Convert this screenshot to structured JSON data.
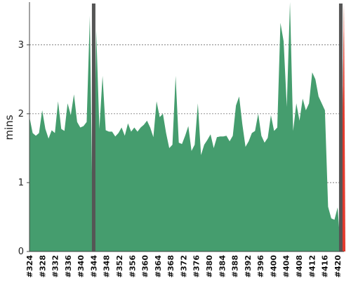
{
  "chart_data": {
    "type": "area",
    "title": "",
    "xlabel": "",
    "ylabel": "mins",
    "ylim": [
      0,
      3.6
    ],
    "yticks": [
      0,
      1,
      2,
      3
    ],
    "grid": true,
    "x_start": 324,
    "x_end": 422,
    "tick_labels": [
      "#324",
      "#328",
      "#332",
      "#336",
      "#340",
      "#344",
      "#348",
      "#352",
      "#356",
      "#360",
      "#364",
      "#368",
      "#372",
      "#376",
      "#380",
      "#384",
      "#388",
      "#392",
      "#396",
      "#400",
      "#404",
      "#408",
      "#412",
      "#416",
      "#420"
    ],
    "values": [
      1.95,
      1.72,
      1.68,
      1.72,
      2.05,
      1.78,
      1.64,
      1.76,
      1.72,
      2.18,
      1.78,
      1.75,
      2.15,
      1.98,
      2.28,
      1.88,
      1.8,
      1.82,
      1.88,
      3.42,
      0.0,
      3.22,
      1.78,
      2.55,
      1.76,
      1.74,
      1.74,
      1.67,
      1.72,
      1.8,
      1.68,
      1.86,
      1.74,
      1.8,
      1.74,
      1.8,
      1.84,
      1.9,
      1.8,
      1.66,
      2.18,
      1.95,
      2.0,
      1.72,
      1.5,
      1.55,
      2.55,
      1.58,
      1.56,
      1.68,
      1.82,
      1.46,
      1.55,
      2.15,
      1.4,
      1.55,
      1.62,
      1.7,
      1.5,
      1.66,
      1.67,
      1.67,
      1.68,
      1.6,
      1.68,
      2.12,
      2.25,
      1.85,
      1.52,
      1.6,
      1.72,
      1.75,
      2.0,
      1.68,
      1.58,
      1.65,
      1.98,
      1.75,
      1.8,
      3.32,
      3.05,
      2.1,
      3.62,
      1.75,
      2.15,
      1.9,
      2.22,
      2.05,
      2.15,
      2.6,
      2.5,
      2.25,
      2.15,
      2.05,
      0.65,
      0.48,
      0.46,
      0.64,
      0.0,
      3.6
    ],
    "failed_builds": [
      344,
      421
    ],
    "colors": {
      "success": "#459d6e",
      "failed": "#555555",
      "unstable": "#e33b2e",
      "grid": "#6a6a6a",
      "axis": "#444444"
    }
  }
}
